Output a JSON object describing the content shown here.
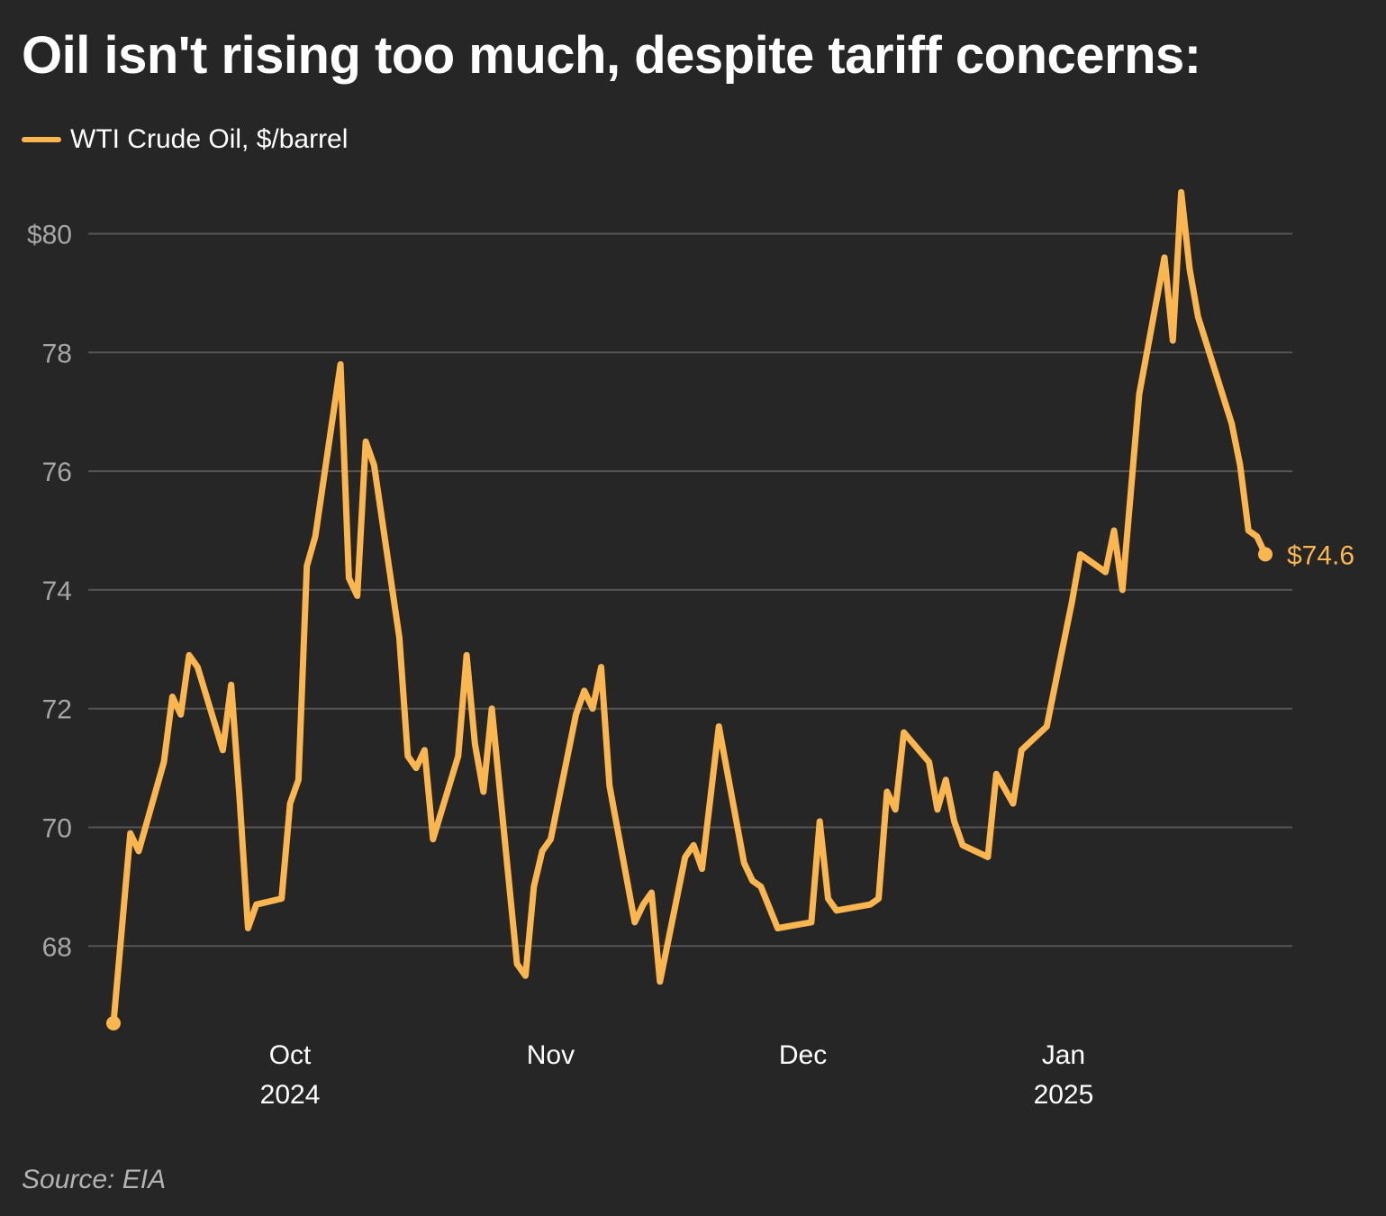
{
  "title": "Oil isn't rising too much, despite tariff concerns:",
  "source": "Source: EIA",
  "colors": {
    "background": "#262626",
    "line": "#fbb650",
    "grid": "#555555",
    "tick_text": "#a6a6a6",
    "axis_text": "#ffffff"
  },
  "chart_data": {
    "type": "line",
    "title": "Oil isn't rising too much, despite tariff concerns:",
    "xlabel": "",
    "ylabel": "",
    "ylim": [
      66.5,
      81
    ],
    "grid": true,
    "legend_position": "top-left",
    "y_ticks": [
      {
        "value": 80,
        "label": "$80"
      },
      {
        "value": 78,
        "label": "78"
      },
      {
        "value": 76,
        "label": "76"
      },
      {
        "value": 74,
        "label": "74"
      },
      {
        "value": 72,
        "label": "72"
      },
      {
        "value": 70,
        "label": "70"
      },
      {
        "value": 68,
        "label": "68"
      }
    ],
    "x_ticks": [
      {
        "date": "2024-10-01",
        "label": "Oct",
        "sublabel": "2024"
      },
      {
        "date": "2024-11-01",
        "label": "Nov",
        "sublabel": ""
      },
      {
        "date": "2024-12-01",
        "label": "Dec",
        "sublabel": ""
      },
      {
        "date": "2025-01-01",
        "label": "Jan",
        "sublabel": "2025"
      }
    ],
    "x_range": [
      "2024-09-10",
      "2025-01-29"
    ],
    "end_label": "$74.6",
    "series": [
      {
        "name": "WTI Crude Oil, $/barrel",
        "points": [
          [
            "2024-09-10",
            66.7
          ],
          [
            "2024-09-12",
            69.9
          ],
          [
            "2024-09-13",
            69.6
          ],
          [
            "2024-09-16",
            71.1
          ],
          [
            "2024-09-17",
            72.2
          ],
          [
            "2024-09-18",
            71.9
          ],
          [
            "2024-09-19",
            72.9
          ],
          [
            "2024-09-20",
            72.7
          ],
          [
            "2024-09-23",
            71.3
          ],
          [
            "2024-09-24",
            72.4
          ],
          [
            "2024-09-25",
            70.5
          ],
          [
            "2024-09-26",
            68.3
          ],
          [
            "2024-09-27",
            68.7
          ],
          [
            "2024-09-30",
            68.8
          ],
          [
            "2024-10-01",
            70.4
          ],
          [
            "2024-10-02",
            70.8
          ],
          [
            "2024-10-03",
            74.4
          ],
          [
            "2024-10-04",
            74.9
          ],
          [
            "2024-10-07",
            77.8
          ],
          [
            "2024-10-08",
            74.2
          ],
          [
            "2024-10-09",
            73.9
          ],
          [
            "2024-10-10",
            76.5
          ],
          [
            "2024-10-11",
            76.1
          ],
          [
            "2024-10-14",
            73.2
          ],
          [
            "2024-10-15",
            71.2
          ],
          [
            "2024-10-16",
            71.0
          ],
          [
            "2024-10-17",
            71.3
          ],
          [
            "2024-10-18",
            69.8
          ],
          [
            "2024-10-21",
            71.2
          ],
          [
            "2024-10-22",
            72.9
          ],
          [
            "2024-10-23",
            71.4
          ],
          [
            "2024-10-24",
            70.6
          ],
          [
            "2024-10-25",
            72.0
          ],
          [
            "2024-10-28",
            67.7
          ],
          [
            "2024-10-29",
            67.5
          ],
          [
            "2024-10-30",
            69.0
          ],
          [
            "2024-10-31",
            69.6
          ],
          [
            "2024-11-01",
            69.8
          ],
          [
            "2024-11-04",
            71.9
          ],
          [
            "2024-11-05",
            72.3
          ],
          [
            "2024-11-06",
            72.0
          ],
          [
            "2024-11-07",
            72.7
          ],
          [
            "2024-11-08",
            70.7
          ],
          [
            "2024-11-11",
            68.4
          ],
          [
            "2024-11-12",
            68.7
          ],
          [
            "2024-11-13",
            68.9
          ],
          [
            "2024-11-14",
            67.4
          ],
          [
            "2024-11-17",
            69.5
          ],
          [
            "2024-11-18",
            69.7
          ],
          [
            "2024-11-19",
            69.3
          ],
          [
            "2024-11-21",
            71.7
          ],
          [
            "2024-11-24",
            69.4
          ],
          [
            "2024-11-25",
            69.1
          ],
          [
            "2024-11-26",
            69.0
          ],
          [
            "2024-11-28",
            68.3
          ],
          [
            "2024-12-02",
            68.4
          ],
          [
            "2024-12-03",
            70.1
          ],
          [
            "2024-12-04",
            68.8
          ],
          [
            "2024-12-05",
            68.6
          ],
          [
            "2024-12-09",
            68.7
          ],
          [
            "2024-12-10",
            68.8
          ],
          [
            "2024-12-11",
            70.6
          ],
          [
            "2024-12-12",
            70.3
          ],
          [
            "2024-12-13",
            71.6
          ],
          [
            "2024-12-16",
            71.1
          ],
          [
            "2024-12-17",
            70.3
          ],
          [
            "2024-12-18",
            70.8
          ],
          [
            "2024-12-19",
            70.1
          ],
          [
            "2024-12-20",
            69.7
          ],
          [
            "2024-12-23",
            69.5
          ],
          [
            "2024-12-24",
            70.9
          ],
          [
            "2024-12-26",
            70.4
          ],
          [
            "2024-12-27",
            71.3
          ],
          [
            "2024-12-30",
            71.7
          ],
          [
            "2024-12-31",
            72.4
          ],
          [
            "2025-01-02",
            73.8
          ],
          [
            "2025-01-03",
            74.6
          ],
          [
            "2025-01-06",
            74.3
          ],
          [
            "2025-01-07",
            75.0
          ],
          [
            "2025-01-08",
            74.0
          ],
          [
            "2025-01-10",
            77.3
          ],
          [
            "2025-01-13",
            79.6
          ],
          [
            "2025-01-14",
            78.2
          ],
          [
            "2025-01-15",
            80.7
          ],
          [
            "2025-01-16",
            79.4
          ],
          [
            "2025-01-17",
            78.6
          ],
          [
            "2025-01-21",
            76.8
          ],
          [
            "2025-01-22",
            76.1
          ],
          [
            "2025-01-23",
            75.0
          ],
          [
            "2025-01-24",
            74.9
          ],
          [
            "2025-01-25",
            74.6
          ]
        ]
      }
    ]
  }
}
